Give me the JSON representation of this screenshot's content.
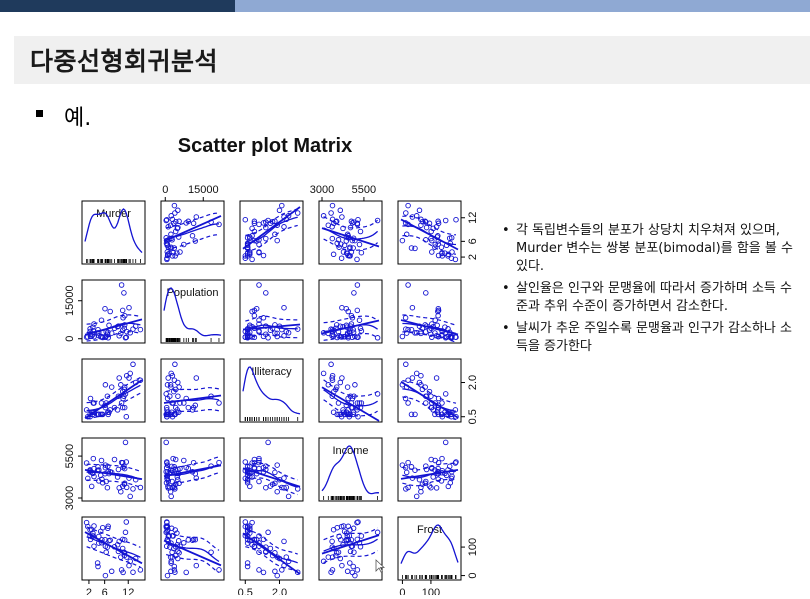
{
  "slide": {
    "title": "다중선형회귀분석",
    "section_label": "예.",
    "notes": [
      "각 독립변수들의 분포가 상당치 치우쳐져 있으며, Murder 변수는 쌍봉 분포(bimodal)를 함을 볼 수 있다.",
      "살인율은 인구와 문맹율에 따라서 증가하며 소득 수준과 추위 수준이 증가하면서 감소한다.",
      "날씨가 추운 주일수록 문맹율과 인구가 감소하나 소득을 증가한다"
    ]
  },
  "chart_data": {
    "type": "scatter",
    "title": "Scatter plot Matrix",
    "variables": [
      "Murder",
      "Population",
      "Illiteracy",
      "Income",
      "Frost"
    ],
    "series_color": "#1414d2",
    "axis_ticks": {
      "Murder": {
        "labels": [
          "2",
          "6",
          "12"
        ],
        "values": [
          2,
          6,
          12
        ],
        "range": [
          1,
          15.5
        ]
      },
      "Population": {
        "labels": [
          "0",
          "15000"
        ],
        "values": [
          0,
          15000
        ],
        "range": [
          -500,
          22000
        ]
      },
      "Illiteracy": {
        "labels": [
          "0.5",
          "2.0"
        ],
        "values": [
          0.5,
          2.0
        ],
        "range": [
          0.4,
          2.9
        ]
      },
      "Income": {
        "labels": [
          "3000",
          "5500"
        ],
        "values": [
          3000,
          5500
        ],
        "range": [
          3000,
          6400
        ]
      },
      "Frost": {
        "labels": [
          "0",
          "100"
        ],
        "values": [
          0,
          100
        ],
        "range": [
          -5,
          195
        ]
      }
    },
    "tick_placement": {
      "top": [
        "Population",
        "Income"
      ],
      "bottom": [
        "Murder",
        "Illiteracy",
        "Frost"
      ],
      "left": [
        "Population",
        "Income"
      ],
      "right": [
        "Murder",
        "Illiteracy",
        "Frost"
      ]
    },
    "diagonal": "density",
    "overlays": [
      "linear-fit",
      "smoother",
      "spread"
    ],
    "data": {
      "Murder": [
        15.1,
        11.3,
        7.8,
        10.1,
        10.3,
        6.8,
        3.1,
        6.2,
        10.7,
        13.9,
        6.2,
        5.3,
        10.6,
        7.1,
        2.3,
        4.5,
        10.6,
        13.2,
        2.7,
        8.5,
        3.3,
        11.1,
        2.3,
        12.5,
        9.3,
        5.0,
        2.9,
        11.5,
        3.3,
        5.2,
        9.7,
        10.9,
        11.1,
        1.4,
        7.4,
        6.4,
        4.2,
        6.1,
        2.4,
        11.6,
        1.7,
        11.0,
        12.2,
        4.5,
        5.5,
        9.5,
        4.3,
        6.7,
        3.0,
        6.9
      ],
      "Population": [
        3615,
        365,
        2212,
        2110,
        21198,
        2541,
        3100,
        579,
        8277,
        4931,
        868,
        813,
        11197,
        5313,
        2861,
        2280,
        3387,
        3806,
        1058,
        4122,
        5814,
        9111,
        3921,
        2341,
        4767,
        746,
        1544,
        590,
        812,
        7333,
        1144,
        18076,
        5441,
        637,
        10735,
        2715,
        2284,
        11860,
        931,
        2816,
        681,
        4173,
        12237,
        1203,
        472,
        4981,
        3559,
        1799,
        4589,
        376
      ],
      "Illiteracy": [
        2.1,
        1.5,
        1.8,
        1.9,
        1.1,
        0.7,
        1.1,
        0.9,
        1.3,
        2.0,
        1.9,
        0.6,
        0.9,
        0.7,
        0.5,
        0.6,
        1.6,
        2.8,
        0.7,
        0.9,
        1.1,
        0.9,
        0.6,
        2.4,
        0.8,
        0.6,
        0.6,
        0.5,
        0.7,
        1.1,
        2.2,
        1.4,
        1.8,
        0.8,
        0.8,
        1.1,
        0.6,
        1.0,
        1.3,
        2.3,
        0.5,
        1.7,
        2.2,
        0.6,
        0.6,
        1.4,
        0.6,
        1.4,
        0.7,
        0.6
      ],
      "Income": [
        3624,
        6315,
        4530,
        3378,
        5114,
        4884,
        5348,
        4809,
        4815,
        4091,
        4963,
        4119,
        5107,
        4458,
        4628,
        4669,
        3712,
        3545,
        3694,
        5299,
        4755,
        4751,
        4675,
        3098,
        4254,
        4347,
        4508,
        5149,
        4281,
        5237,
        3601,
        4903,
        3875,
        5087,
        4561,
        3983,
        4660,
        4449,
        4558,
        3635,
        4167,
        3821,
        4188,
        4022,
        3907,
        4701,
        4864,
        3617,
        4468,
        4566
      ],
      "Frost": [
        20,
        152,
        15,
        65,
        20,
        166,
        139,
        103,
        11,
        60,
        0,
        126,
        127,
        122,
        140,
        114,
        95,
        12,
        161,
        101,
        103,
        125,
        160,
        50,
        108,
        155,
        139,
        188,
        174,
        115,
        120,
        82,
        80,
        186,
        124,
        82,
        44,
        126,
        127,
        65,
        172,
        70,
        35,
        137,
        168,
        85,
        32,
        100,
        149,
        173
      ]
    }
  }
}
